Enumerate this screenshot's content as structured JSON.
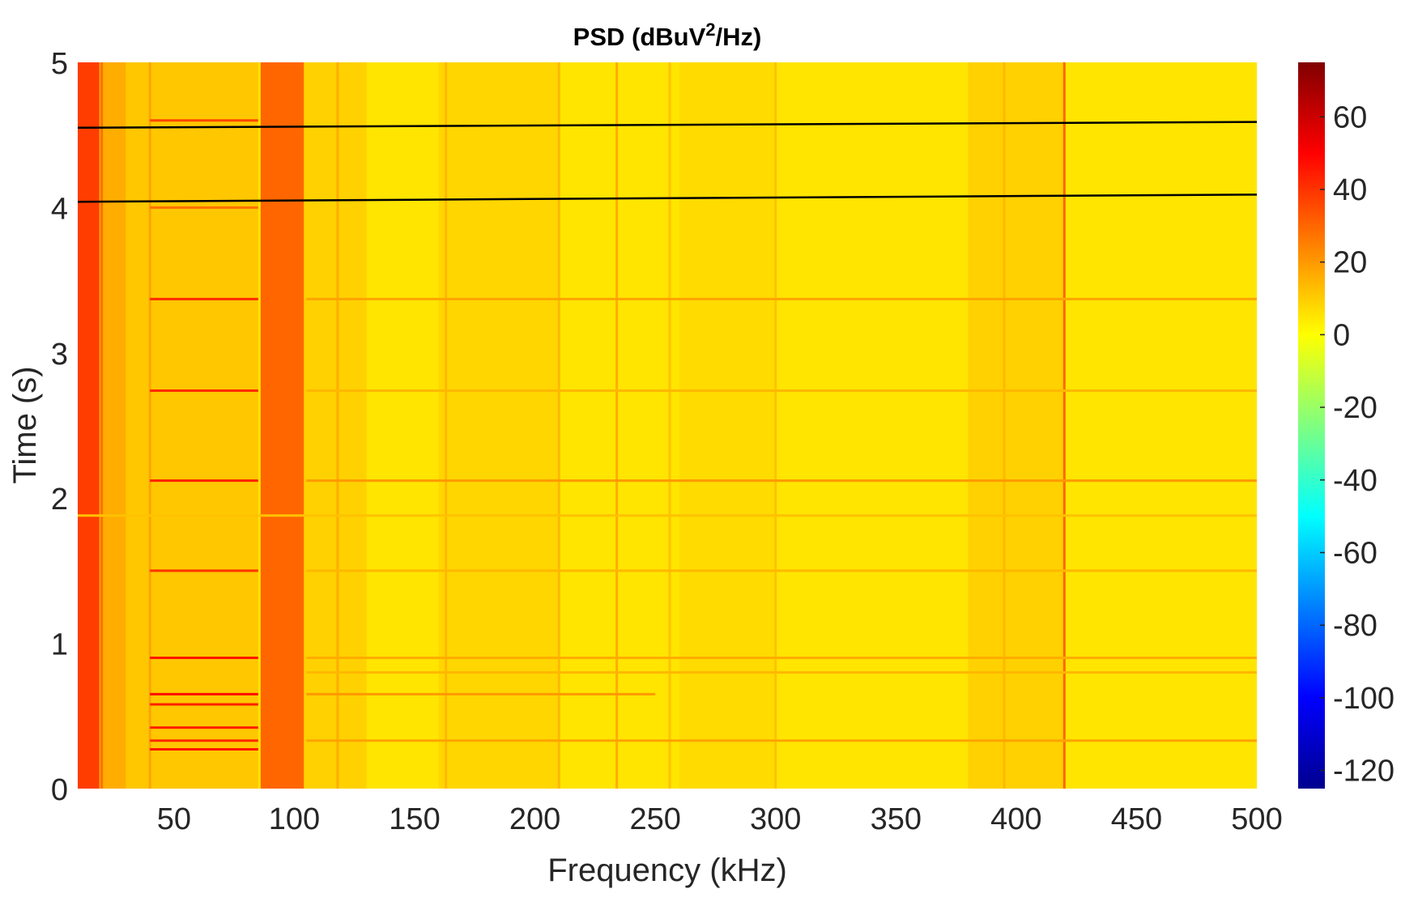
{
  "chart_data": {
    "type": "heatmap",
    "title": "PSD (dBuV",
    "title_sup": "2",
    "title_tail": "/Hz)",
    "xlabel": "Frequency (kHz)",
    "ylabel": "Time (s)",
    "xlim": [
      10,
      500
    ],
    "ylim": [
      0,
      5
    ],
    "xticks": [
      50,
      100,
      150,
      200,
      250,
      300,
      350,
      400,
      450,
      500
    ],
    "xtick_labels": [
      "50",
      "100",
      "150",
      "200",
      "250",
      "300",
      "350",
      "400",
      "450",
      "500"
    ],
    "yticks": [
      0,
      1,
      2,
      3,
      4,
      5
    ],
    "ytick_labels": [
      "0",
      "1",
      "2",
      "3",
      "4",
      "5"
    ],
    "colorbar": {
      "colormap": "jet",
      "clim": [
        -125,
        75
      ],
      "ticks": [
        60,
        40,
        20,
        0,
        -20,
        -40,
        -60,
        -80,
        -100,
        -120
      ],
      "tick_labels": [
        "60",
        "40",
        "20",
        "0",
        "-20",
        "-40",
        "-60",
        "-80",
        "-100",
        "-120"
      ]
    },
    "background_level_db": 5,
    "vertical_bands": [
      {
        "f_start": 10,
        "f_end": 19,
        "level_db": 38
      },
      {
        "f_start": 19,
        "f_end": 30,
        "level_db": 16
      },
      {
        "f_start": 30,
        "f_end": 85,
        "level_db": 11
      },
      {
        "f_start": 86,
        "f_end": 104,
        "level_db": 30
      },
      {
        "f_start": 104,
        "f_end": 130,
        "level_db": 9
      },
      {
        "f_start": 160,
        "f_end": 210,
        "level_db": 8
      },
      {
        "f_start": 260,
        "f_end": 300,
        "level_db": 7
      },
      {
        "f_start": 380,
        "f_end": 420,
        "level_db": 9
      }
    ],
    "vertical_lines": [
      {
        "f": 20,
        "level_db": 28
      },
      {
        "f": 40,
        "level_db": 18
      },
      {
        "f": 118,
        "level_db": 16
      },
      {
        "f": 163,
        "level_db": 14
      },
      {
        "f": 210,
        "level_db": 14
      },
      {
        "f": 234,
        "level_db": 16
      },
      {
        "f": 256,
        "level_db": 12
      },
      {
        "f": 300,
        "level_db": 12
      },
      {
        "f": 395,
        "level_db": 14
      },
      {
        "f": 420,
        "level_db": 30
      }
    ],
    "horizontal_lines": [
      {
        "t": 4.6,
        "f_start": 40,
        "f_end": 85,
        "level_db": 36
      },
      {
        "t": 4.0,
        "f_start": 40,
        "f_end": 85,
        "level_db": 28
      },
      {
        "t": 3.37,
        "f_start": 40,
        "f_end": 85,
        "level_db": 42
      },
      {
        "t": 3.37,
        "f_start": 105,
        "f_end": 500,
        "level_db": 18
      },
      {
        "t": 2.74,
        "f_start": 40,
        "f_end": 85,
        "level_db": 42
      },
      {
        "t": 2.74,
        "f_start": 105,
        "f_end": 500,
        "level_db": 14
      },
      {
        "t": 2.12,
        "f_start": 40,
        "f_end": 85,
        "level_db": 44
      },
      {
        "t": 2.12,
        "f_start": 105,
        "f_end": 500,
        "level_db": 20
      },
      {
        "t": 1.5,
        "f_start": 40,
        "f_end": 85,
        "level_db": 40
      },
      {
        "t": 1.5,
        "f_start": 105,
        "f_end": 500,
        "level_db": 14
      },
      {
        "t": 0.9,
        "f_start": 40,
        "f_end": 85,
        "level_db": 46
      },
      {
        "t": 0.9,
        "f_start": 105,
        "f_end": 500,
        "level_db": 16
      },
      {
        "t": 0.65,
        "f_start": 40,
        "f_end": 85,
        "level_db": 48
      },
      {
        "t": 0.65,
        "f_start": 105,
        "f_end": 250,
        "level_db": 20
      },
      {
        "t": 0.58,
        "f_start": 40,
        "f_end": 85,
        "level_db": 44
      },
      {
        "t": 0.42,
        "f_start": 40,
        "f_end": 85,
        "level_db": 44
      },
      {
        "t": 0.33,
        "f_start": 40,
        "f_end": 85,
        "level_db": 42
      },
      {
        "t": 0.33,
        "f_start": 105,
        "f_end": 500,
        "level_db": 18
      },
      {
        "t": 0.27,
        "f_start": 40,
        "f_end": 85,
        "level_db": 46
      },
      {
        "t": 1.88,
        "f_start": 10,
        "f_end": 500,
        "level_db": 12
      },
      {
        "t": 0.8,
        "f_start": 105,
        "f_end": 500,
        "level_db": 14
      }
    ],
    "overlay_lines": [
      {
        "f_start": 10,
        "t_start": 4.55,
        "f_end": 500,
        "t_end": 4.59
      },
      {
        "f_start": 10,
        "t_start": 4.04,
        "f_end": 500,
        "t_end": 4.09
      }
    ]
  }
}
